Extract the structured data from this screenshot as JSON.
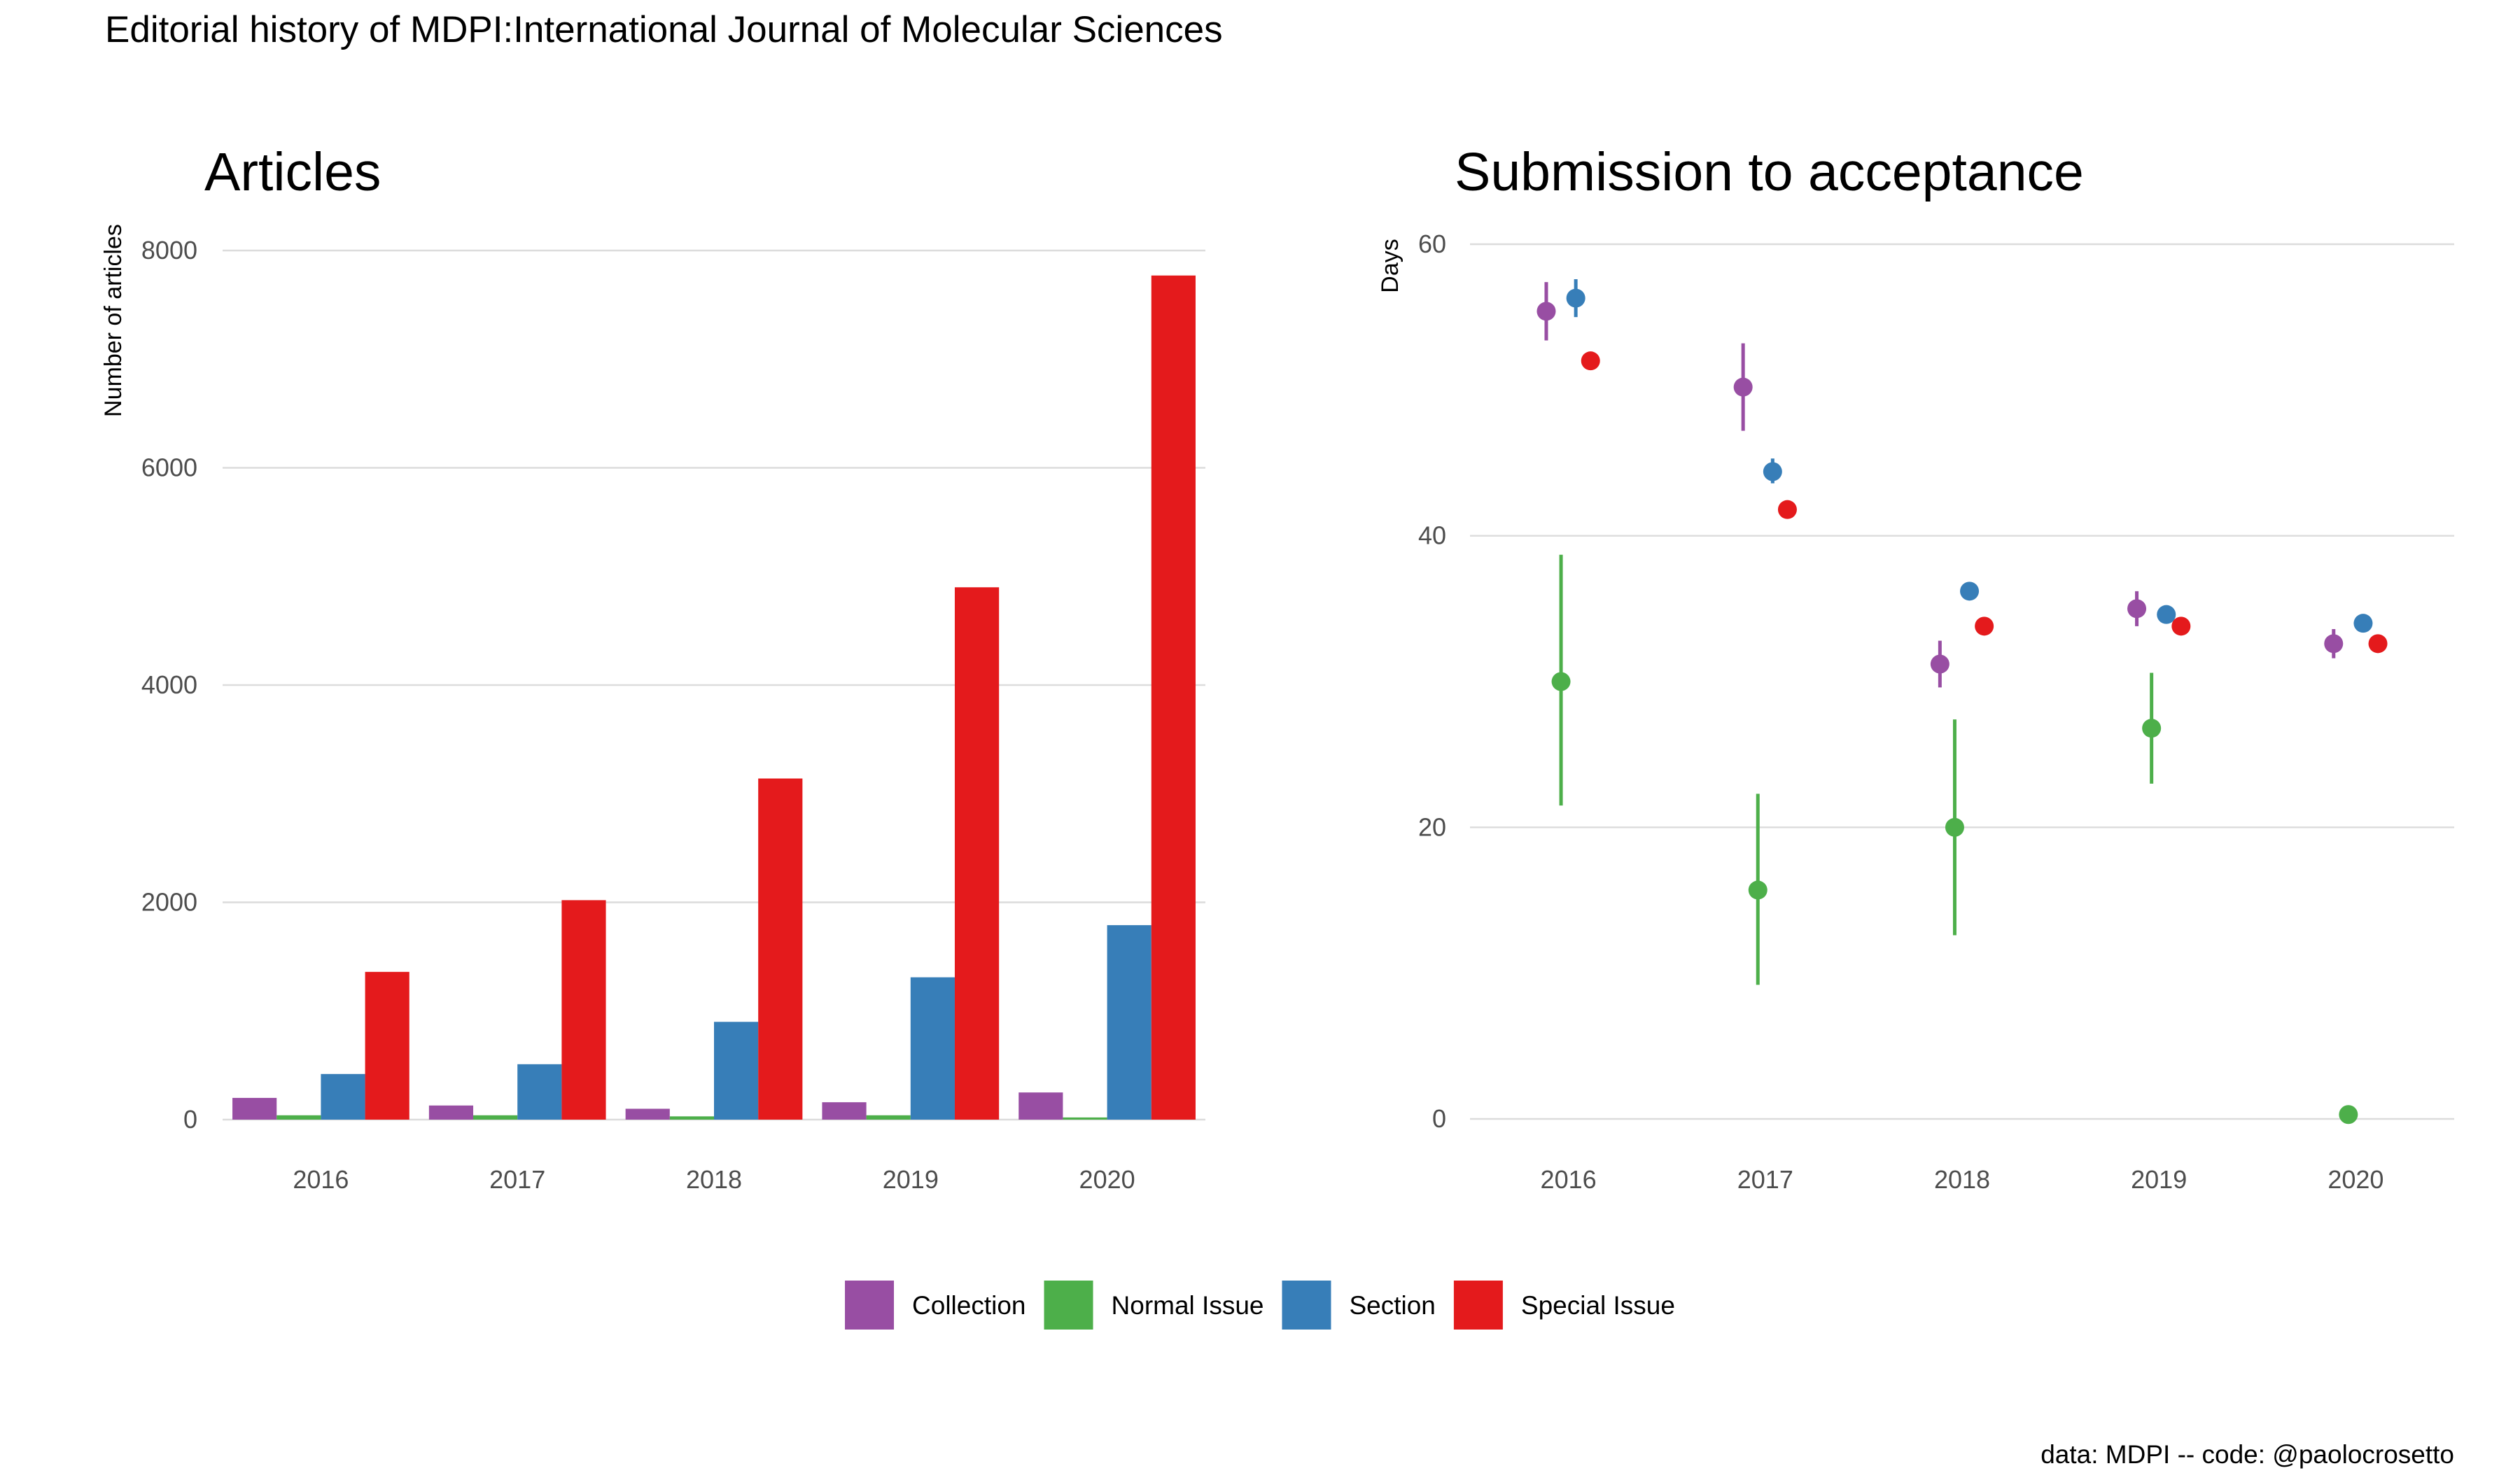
{
  "title": "Editorial history of MDPI:International Journal of Molecular Sciences",
  "caption": "data: MDPI -- code: @paolocrosetto",
  "colors": {
    "Collection": "#984ea3",
    "Normal Issue": "#4daf4a",
    "Section": "#377eb8",
    "Special Issue": "#e41a1c"
  },
  "legend": [
    "Collection",
    "Normal Issue",
    "Section",
    "Special Issue"
  ],
  "chart_data": [
    {
      "type": "bar",
      "title": "Articles",
      "xlabel": "",
      "ylabel": "Number of articles",
      "categories": [
        "2016",
        "2017",
        "2018",
        "2019",
        "2020"
      ],
      "ylim": [
        0,
        8000
      ],
      "yticks": [
        "0",
        "2000",
        "4000",
        "6000",
        "8000"
      ],
      "series": [
        {
          "name": "Collection",
          "values": [
            200,
            130,
            100,
            160,
            250
          ]
        },
        {
          "name": "Normal Issue",
          "values": [
            40,
            40,
            30,
            40,
            20
          ]
        },
        {
          "name": "Section",
          "values": [
            420,
            510,
            900,
            1310,
            1790
          ]
        },
        {
          "name": "Special Issue",
          "values": [
            1360,
            2020,
            3140,
            4900,
            7770
          ]
        }
      ]
    },
    {
      "type": "scatter",
      "title": "Submission to acceptance",
      "xlabel": "",
      "ylabel": "Days",
      "categories": [
        "2016",
        "2017",
        "2018",
        "2019",
        "2020"
      ],
      "ylim": [
        0,
        60
      ],
      "yticks": [
        "0",
        "20",
        "40",
        "60"
      ],
      "series": [
        {
          "name": "Collection",
          "values": [
            55.4,
            50.2,
            31.2,
            35.0,
            32.6
          ],
          "low": [
            53.4,
            47.2,
            29.6,
            33.8,
            31.6
          ],
          "high": [
            57.4,
            53.2,
            32.8,
            36.2,
            33.6
          ]
        },
        {
          "name": "Normal Issue",
          "values": [
            30.0,
            15.7,
            20.0,
            26.8,
            0.3
          ],
          "low": [
            21.5,
            9.2,
            12.6,
            23.0,
            null
          ],
          "high": [
            38.7,
            22.3,
            27.4,
            30.6,
            null
          ]
        },
        {
          "name": "Section",
          "values": [
            56.3,
            44.4,
            36.2,
            34.6,
            34.0
          ],
          "low": [
            55.0,
            43.6,
            null,
            null,
            null
          ],
          "high": [
            57.6,
            45.3,
            null,
            null,
            null
          ]
        },
        {
          "name": "Special Issue",
          "values": [
            52.0,
            41.8,
            33.8,
            33.8,
            32.6
          ],
          "low": [
            null,
            null,
            null,
            null,
            null
          ],
          "high": [
            null,
            null,
            null,
            null,
            null
          ]
        }
      ]
    }
  ]
}
